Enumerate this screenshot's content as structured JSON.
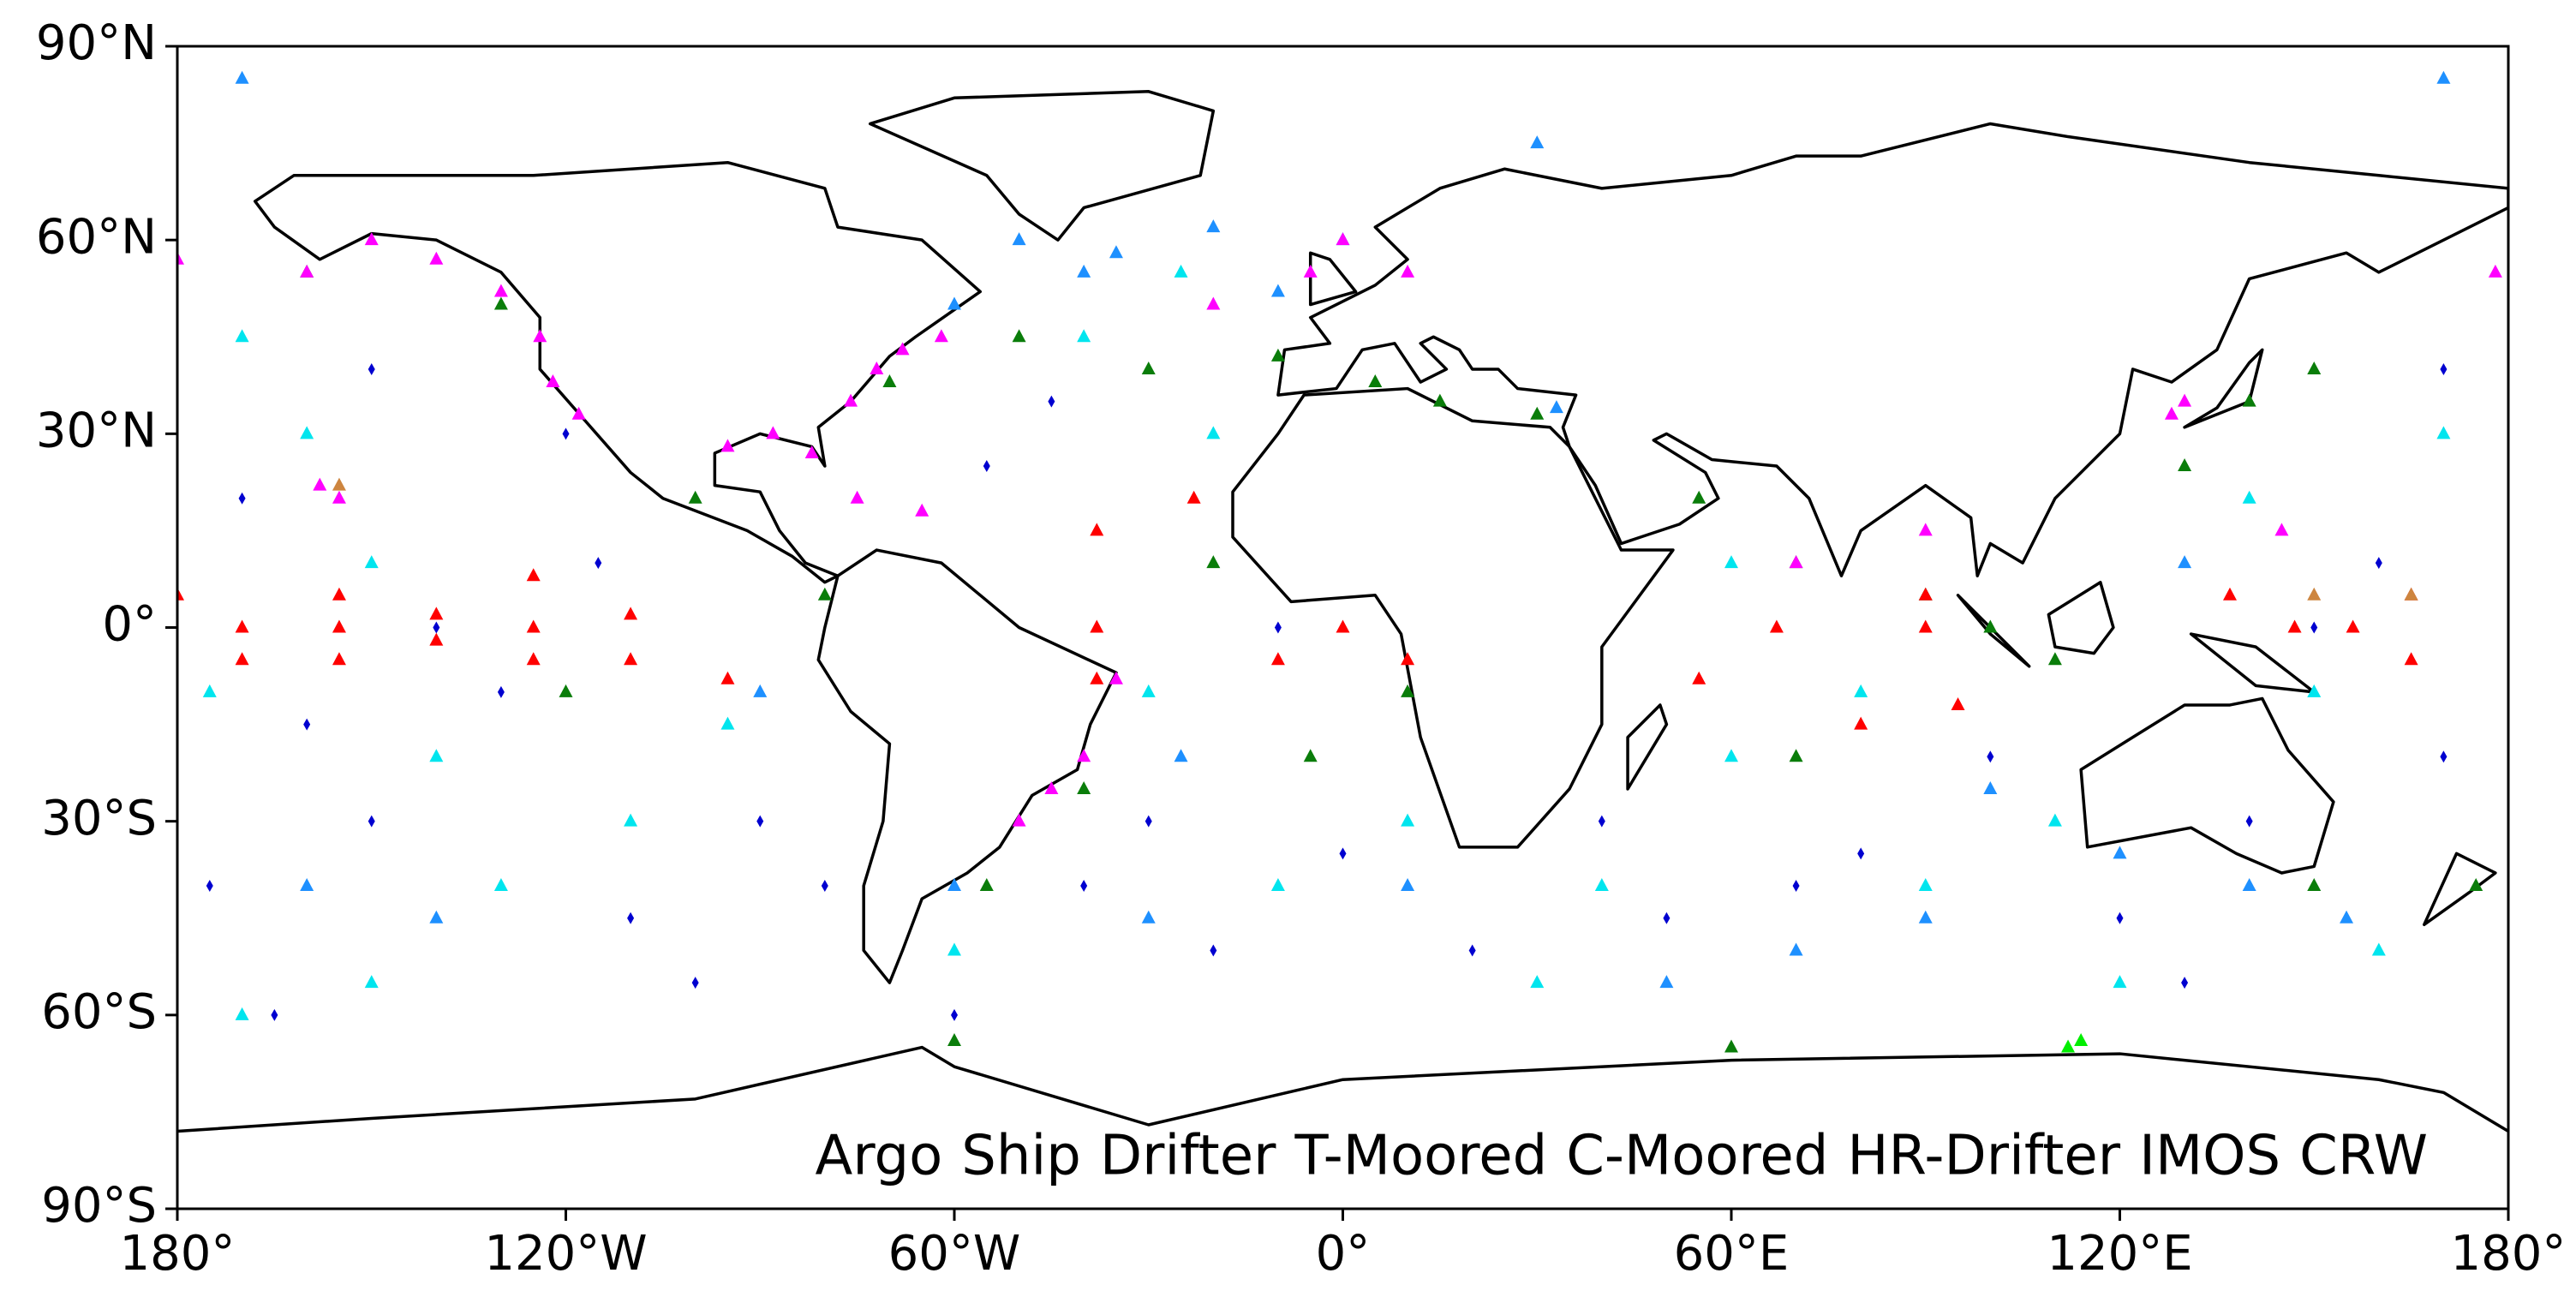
{
  "chart_data": {
    "type": "scatter",
    "xlim": [
      -180,
      180
    ],
    "ylim": [
      -90,
      90
    ],
    "xticks": [
      {
        "value": -180,
        "label": "180°"
      },
      {
        "value": -120,
        "label": "120°W"
      },
      {
        "value": -60,
        "label": "60°W"
      },
      {
        "value": 0,
        "label": "0°"
      },
      {
        "value": 60,
        "label": "60°E"
      },
      {
        "value": 120,
        "label": "120°E"
      },
      {
        "value": 180,
        "label": "180°"
      }
    ],
    "yticks": [
      {
        "value": -90,
        "label": "90°S"
      },
      {
        "value": -60,
        "label": "60°S"
      },
      {
        "value": -30,
        "label": "30°S"
      },
      {
        "value": 0,
        "label": "0°"
      },
      {
        "value": 30,
        "label": "30°N"
      },
      {
        "value": 60,
        "label": "60°N"
      },
      {
        "value": 90,
        "label": "90°N"
      }
    ],
    "legend": "lower right",
    "series": [
      {
        "name": "Argo",
        "color": "#00e5ee",
        "marker": "triangle",
        "x": [
          -170,
          -160,
          -150,
          -140,
          -130,
          -170,
          -110,
          -95,
          -60,
          -30,
          -20,
          -40,
          -10,
          10,
          40,
          60,
          80,
          90,
          110,
          140,
          150,
          160,
          170,
          -175,
          120,
          30,
          -150,
          60,
          0,
          -25
        ],
        "y": [
          45,
          30,
          10,
          -20,
          -40,
          -60,
          -30,
          -15,
          -50,
          -10,
          30,
          45,
          -40,
          -30,
          -40,
          -20,
          -10,
          -40,
          -30,
          20,
          -10,
          -50,
          30,
          -10,
          -55,
          -55,
          -55,
          10,
          60,
          55
        ]
      },
      {
        "name": "Ship",
        "color": "#0a7d0a",
        "marker": "triangle",
        "x": [
          -160,
          -130,
          -70,
          -50,
          -30,
          -10,
          5,
          15,
          30,
          55,
          70,
          90,
          100,
          110,
          130,
          140,
          150,
          -40,
          -55,
          -60,
          60,
          70,
          10,
          -20,
          -5,
          150,
          175,
          -80,
          -120,
          -100
        ],
        "y": [
          55,
          50,
          38,
          45,
          40,
          42,
          38,
          35,
          33,
          20,
          10,
          5,
          0,
          -5,
          25,
          35,
          40,
          -25,
          -40,
          -64,
          -65,
          -20,
          -10,
          10,
          -20,
          -40,
          -40,
          5,
          -10,
          20
        ]
      },
      {
        "name": "Drifter",
        "color": "#0000d0",
        "marker": "diamond",
        "x": [
          -170,
          -160,
          -150,
          -140,
          -130,
          -120,
          -110,
          -100,
          -90,
          -80,
          -60,
          -40,
          -30,
          -20,
          -10,
          0,
          20,
          40,
          50,
          70,
          80,
          100,
          120,
          130,
          150,
          160,
          170,
          -175,
          -165,
          -45,
          -55,
          -150,
          -115,
          170,
          140
        ],
        "y": [
          20,
          -15,
          40,
          0,
          -10,
          30,
          -45,
          -55,
          -30,
          -40,
          -60,
          -40,
          -30,
          -50,
          0,
          -35,
          -50,
          -30,
          -45,
          -40,
          -35,
          -20,
          -45,
          -55,
          0,
          10,
          -20,
          -40,
          -60,
          35,
          25,
          -30,
          10,
          40,
          -30
        ]
      },
      {
        "name": "T-Moored",
        "color": "#ff0000",
        "marker": "triangle",
        "x": [
          -180,
          -170,
          -170,
          -155,
          -155,
          -155,
          -140,
          -140,
          -125,
          -125,
          -125,
          -110,
          -110,
          -95,
          -38,
          -38,
          -38,
          -23,
          -10,
          0,
          10,
          55,
          67,
          80,
          90,
          90,
          95,
          137,
          147,
          156,
          165,
          165
        ],
        "y": [
          5,
          0,
          -5,
          5,
          0,
          -5,
          2,
          -2,
          8,
          0,
          -5,
          2,
          -5,
          -8,
          15,
          0,
          -8,
          20,
          -5,
          0,
          -5,
          -8,
          0,
          -15,
          5,
          0,
          -12,
          5,
          0,
          0,
          5,
          -5
        ]
      },
      {
        "name": "C-Moored",
        "color": "#ff00ff",
        "marker": "triangle",
        "x": [
          -180,
          -160,
          -150,
          -140,
          -130,
          -124,
          -122,
          -118,
          -95,
          -88,
          -82,
          -76,
          -72,
          -68,
          -62,
          -75,
          -65,
          -155,
          -158,
          -35,
          -40,
          -45,
          -50,
          -20,
          0,
          -5,
          10,
          130,
          128,
          70,
          90,
          145,
          178
        ],
        "y": [
          57,
          55,
          60,
          57,
          52,
          45,
          38,
          33,
          28,
          30,
          27,
          35,
          40,
          43,
          45,
          20,
          18,
          20,
          22,
          -8,
          -20,
          -25,
          -30,
          50,
          60,
          55,
          55,
          35,
          33,
          10,
          15,
          15,
          55
        ]
      },
      {
        "name": "HR-Drifter",
        "color": "#1e90ff",
        "marker": "triangle",
        "x": [
          -50,
          -40,
          -35,
          -20,
          -10,
          -160,
          -140,
          -60,
          -30,
          10,
          50,
          70,
          90,
          120,
          140,
          155,
          170,
          -170,
          -60,
          33,
          100,
          130,
          -90,
          -25,
          30
        ],
        "y": [
          60,
          55,
          58,
          62,
          52,
          -40,
          -45,
          -40,
          -45,
          -40,
          -55,
          -50,
          -45,
          -35,
          -40,
          -45,
          85,
          85,
          50,
          34,
          -25,
          10,
          -10,
          -20,
          75
        ]
      },
      {
        "name": "IMOS",
        "color": "#00ee00",
        "marker": "triangle",
        "x": [
          112,
          114
        ],
        "y": [
          -65,
          -64
        ]
      },
      {
        "name": "CRW",
        "color": "#cd853f",
        "marker": "triangle",
        "x": [
          -155,
          150,
          165
        ],
        "y": [
          22,
          5,
          5
        ]
      }
    ]
  }
}
